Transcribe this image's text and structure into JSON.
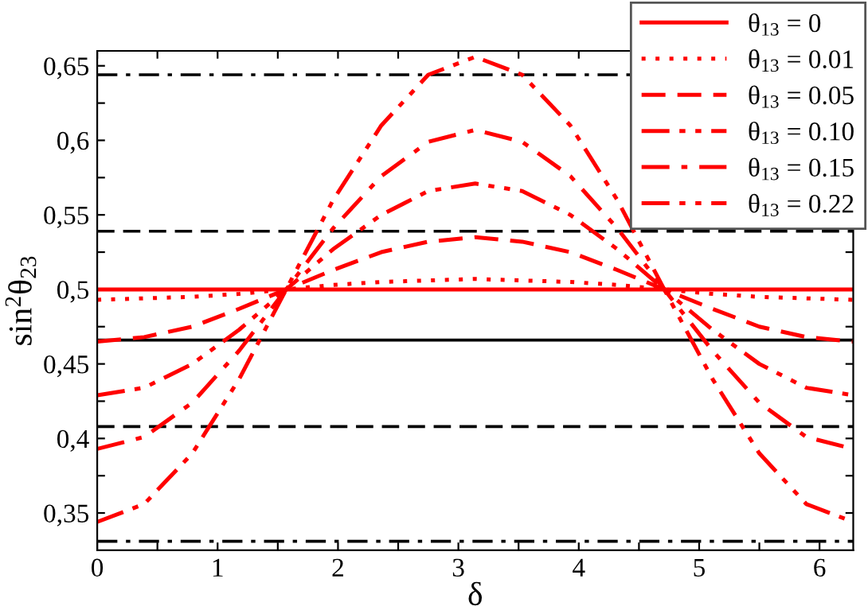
{
  "chart_data": {
    "type": "line",
    "xlabel": "δ",
    "ylabel": "sin$^{2}$θ$_{23}$",
    "x": [
      0,
      0.39,
      0.79,
      1.18,
      1.57,
      1.96,
      2.36,
      2.75,
      3.14,
      3.53,
      3.93,
      4.32,
      4.71,
      5.11,
      5.5,
      5.89,
      6.28
    ],
    "series": [
      {
        "name": "θ$_{13}$ = 0",
        "color": "#ff0000",
        "line_style": "solid",
        "values": [
          0.5,
          0.5,
          0.5,
          0.5,
          0.5,
          0.5,
          0.5,
          0.5,
          0.5,
          0.5,
          0.5,
          0.5,
          0.5,
          0.5,
          0.5,
          0.5,
          0.5
        ]
      },
      {
        "name": "θ$_{13}$ = 0.01",
        "color": "#ff0000",
        "line_style": "dotted",
        "values": [
          0.493,
          0.494,
          0.495,
          0.497,
          0.5,
          0.503,
          0.505,
          0.506,
          0.507,
          0.506,
          0.505,
          0.503,
          0.5,
          0.497,
          0.495,
          0.494,
          0.493
        ]
      },
      {
        "name": "θ$_{13}$ = 0.05",
        "color": "#ff0000",
        "line_style": "dashed",
        "values": [
          0.465,
          0.468,
          0.475,
          0.487,
          0.5,
          0.513,
          0.525,
          0.532,
          0.535,
          0.532,
          0.525,
          0.513,
          0.5,
          0.487,
          0.475,
          0.468,
          0.465
        ]
      },
      {
        "name": "θ$_{13}$ = 0.10",
        "color": "#ff0000",
        "line_style": "dashdotdot",
        "values": [
          0.429,
          0.434,
          0.45,
          0.473,
          0.5,
          0.527,
          0.55,
          0.566,
          0.571,
          0.566,
          0.55,
          0.527,
          0.5,
          0.473,
          0.45,
          0.434,
          0.429
        ]
      },
      {
        "name": "θ$_{13}$ = 0.15",
        "color": "#ff0000",
        "line_style": "dashdot",
        "values": [
          0.393,
          0.401,
          0.424,
          0.459,
          0.5,
          0.541,
          0.576,
          0.599,
          0.607,
          0.599,
          0.576,
          0.541,
          0.5,
          0.459,
          0.424,
          0.401,
          0.393
        ]
      },
      {
        "name": "θ$_{13}$ = 0.22",
        "color": "#ff0000",
        "line_style": "dashdotdot",
        "values": [
          0.344,
          0.356,
          0.39,
          0.44,
          0.5,
          0.56,
          0.61,
          0.644,
          0.656,
          0.644,
          0.61,
          0.56,
          0.5,
          0.44,
          0.39,
          0.356,
          0.344
        ]
      }
    ],
    "ref_lines": [
      {
        "axis": "y",
        "value": 0.644,
        "color": "#000000",
        "line_style": "dashdot"
      },
      {
        "axis": "y",
        "value": 0.539,
        "color": "#000000",
        "line_style": "dashed"
      },
      {
        "axis": "y",
        "value": 0.466,
        "color": "#000000",
        "line_style": "solid"
      },
      {
        "axis": "y",
        "value": 0.408,
        "color": "#000000",
        "line_style": "dashed"
      },
      {
        "axis": "y",
        "value": 0.331,
        "color": "#000000",
        "line_style": "dashdot"
      }
    ],
    "xlim": [
      0,
      6.28
    ],
    "ylim": [
      0.325,
      0.66
    ],
    "xticks": [
      0,
      {
        "value": 0.5,
        "label": null
      },
      1,
      {
        "value": 1.5,
        "label": null
      },
      2,
      {
        "value": 2.5,
        "label": null
      },
      3,
      {
        "value": 3.5,
        "label": null
      },
      4,
      {
        "value": 4.5,
        "label": null
      },
      5,
      {
        "value": 5.5,
        "label": null
      },
      6
    ],
    "yticks": [
      {
        "value": 0.35,
        "label": "0,35"
      },
      {
        "value": 0.375,
        "label": null
      },
      {
        "value": 0.4,
        "label": "0,4"
      },
      {
        "value": 0.425,
        "label": null
      },
      {
        "value": 0.45,
        "label": "0,45"
      },
      {
        "value": 0.475,
        "label": null
      },
      {
        "value": 0.5,
        "label": "0,5"
      },
      {
        "value": 0.525,
        "label": null
      },
      {
        "value": 0.55,
        "label": "0,55"
      },
      {
        "value": 0.575,
        "label": null
      },
      {
        "value": 0.6,
        "label": "0,6"
      },
      {
        "value": 0.625,
        "label": null
      },
      {
        "value": 0.65,
        "label": "0,65"
      }
    ],
    "grid": false,
    "legend": "top right"
  }
}
